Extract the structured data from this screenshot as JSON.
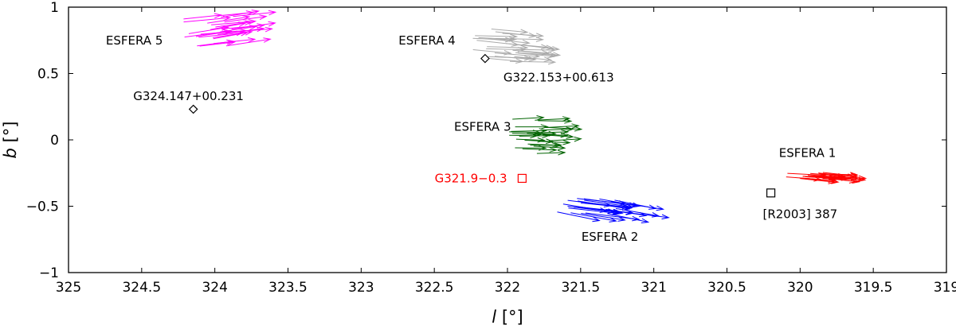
{
  "chart_data": {
    "type": "scatter",
    "title": "",
    "xlabel_italic": "l",
    "xlabel_unit": "[°]",
    "ylabel_italic": "b",
    "ylabel_unit": "[°]",
    "xlim": [
      325,
      319
    ],
    "ylim": [
      -1,
      1
    ],
    "x_reversed": true,
    "grid": false,
    "x_ticks": [
      "325",
      "324.5",
      "324",
      "323.5",
      "323",
      "322.5",
      "322",
      "321.5",
      "321",
      "320.5",
      "320",
      "319.5",
      "319"
    ],
    "y_ticks": [
      "1",
      "0.5",
      "0",
      "−0.5",
      "−1"
    ],
    "groups": [
      {
        "name": "ESFERA 1",
        "color": "#ff0000",
        "center": [
          319.95,
          -0.27
        ],
        "spread": [
          0.32,
          0.05
        ],
        "direction": [
          -0.24,
          -0.02
        ],
        "count": 22,
        "label_at": [
          319.95,
          -0.1
        ]
      },
      {
        "name": "ESFERA 2",
        "color": "#0000ff",
        "center": [
          321.5,
          -0.5
        ],
        "spread": [
          0.55,
          0.12
        ],
        "direction": [
          -0.32,
          -0.05
        ],
        "count": 26,
        "label_at": [
          321.3,
          -0.73
        ]
      },
      {
        "name": "ESFERA 3",
        "color": "#006400",
        "center": [
          321.85,
          0.03
        ],
        "spread": [
          0.3,
          0.28
        ],
        "direction": [
          -0.22,
          0.0
        ],
        "count": 26,
        "label_at": [
          322.17,
          0.1
        ]
      },
      {
        "name": "ESFERA 4",
        "color": "#aaaaaa",
        "center": [
          322.1,
          0.72
        ],
        "spread": [
          0.35,
          0.26
        ],
        "direction": [
          -0.28,
          -0.02
        ],
        "count": 26,
        "label_at": [
          322.55,
          0.75
        ]
      },
      {
        "name": "ESFERA 5",
        "color": "#ff00ff",
        "center": [
          324.05,
          0.82
        ],
        "spread": [
          0.35,
          0.23
        ],
        "direction": [
          -0.28,
          0.04
        ],
        "count": 26,
        "label_at": [
          324.55,
          0.75
        ]
      }
    ],
    "sources": [
      {
        "name": "G324.147+00.231",
        "l": 324.147,
        "b": 0.231,
        "marker": "diamond",
        "color": "#000000",
        "label_at": [
          324.18,
          0.33
        ]
      },
      {
        "name": "G322.153+00.613",
        "l": 322.153,
        "b": 0.613,
        "marker": "diamond",
        "color": "#000000",
        "label_at": [
          321.65,
          0.47
        ]
      },
      {
        "name": "G321.9−0.3",
        "l": 321.9,
        "b": -0.29,
        "marker": "square",
        "color": "#ff0000",
        "label_at": [
          322.25,
          -0.29
        ]
      },
      {
        "name": "[R2003] 387",
        "l": 320.2,
        "b": -0.4,
        "marker": "square",
        "color": "#000000",
        "label_at": [
          320.0,
          -0.56
        ]
      }
    ]
  }
}
